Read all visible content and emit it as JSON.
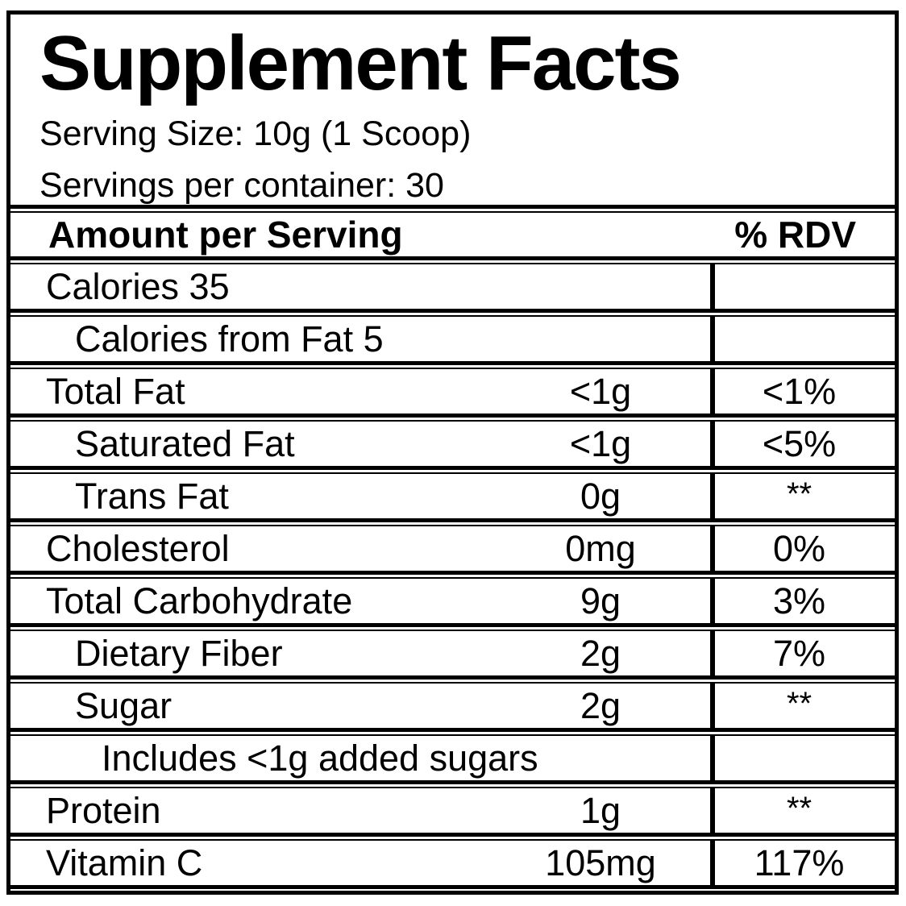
{
  "label": {
    "title": "Supplement Facts",
    "serving_size": "Serving Size: 10g (1 Scoop)",
    "servings_per_container": "Servings per container: 30",
    "header": {
      "amount_col": "Amount per Serving",
      "rdv_col": "% RDV"
    },
    "rows": [
      {
        "name": "Calories 35",
        "indent": 0,
        "amount": "",
        "rdv": ""
      },
      {
        "name": "Calories from Fat 5",
        "indent": 1,
        "amount": "",
        "rdv": ""
      },
      {
        "name": "Total Fat",
        "indent": 0,
        "amount": "<1g",
        "rdv": "<1%"
      },
      {
        "name": "Saturated Fat",
        "indent": 1,
        "amount": "<1g",
        "rdv": "<5%"
      },
      {
        "name": "Trans Fat",
        "indent": 1,
        "amount": "0g",
        "rdv": "**"
      },
      {
        "name": "Cholesterol",
        "indent": 0,
        "amount": "0mg",
        "rdv": "0%"
      },
      {
        "name": "Total Carbohydrate",
        "indent": 0,
        "amount": "9g",
        "rdv": "3%"
      },
      {
        "name": "Dietary Fiber",
        "indent": 1,
        "amount": "2g",
        "rdv": "7%"
      },
      {
        "name": "Sugar",
        "indent": 1,
        "amount": "2g",
        "rdv": "**"
      },
      {
        "name": "Includes <1g added sugars",
        "indent": 2,
        "amount": "",
        "rdv": ""
      },
      {
        "name": "Protein",
        "indent": 0,
        "amount": "1g",
        "rdv": "**"
      },
      {
        "name": "Vitamin C",
        "indent": 0,
        "amount": "105mg",
        "rdv": "117%"
      }
    ],
    "colors": {
      "border": "#000000",
      "background": "#ffffff",
      "text": "#000000"
    }
  }
}
